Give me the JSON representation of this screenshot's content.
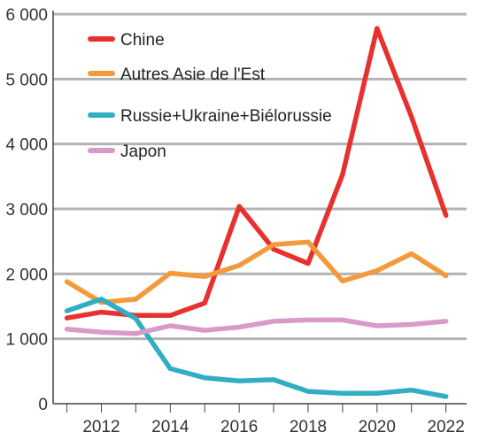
{
  "chart_data": {
    "type": "line",
    "title": "",
    "xlabel": "",
    "ylabel": "",
    "x": [
      2011,
      2012,
      2013,
      2014,
      2015,
      2016,
      2017,
      2018,
      2019,
      2020,
      2021,
      2022
    ],
    "x_tick_labels": [
      "2012",
      "2014",
      "2016",
      "2018",
      "2020",
      "2022"
    ],
    "x_tick_values": [
      2012,
      2014,
      2016,
      2018,
      2020,
      2022
    ],
    "xlim": [
      2010.6,
      2022.6
    ],
    "ylim": [
      0,
      6000
    ],
    "y_ticks": [
      0,
      1000,
      2000,
      3000,
      4000,
      5000,
      6000
    ],
    "y_tick_labels": [
      "0",
      "1 000",
      "2 000",
      "3 000",
      "4 000",
      "5 000",
      "6 000"
    ],
    "grid": "horizontal",
    "legend_position": "top-left",
    "series": [
      {
        "name": "Chine",
        "color": "#e8312f",
        "values": [
          1320,
          1410,
          1360,
          1360,
          1550,
          3040,
          2380,
          2160,
          3530,
          5780,
          4420,
          2900
        ]
      },
      {
        "name": "Autres Asie de l'Est",
        "color": "#f39a3b",
        "values": [
          1880,
          1560,
          1610,
          2010,
          1960,
          2130,
          2450,
          2490,
          1890,
          2050,
          2310,
          1970
        ]
      },
      {
        "name": "Russie+Ukraine+Biélorussie",
        "color": "#31aec4",
        "values": [
          1430,
          1610,
          1310,
          540,
          400,
          350,
          370,
          190,
          160,
          160,
          210,
          110
        ]
      },
      {
        "name": "Japon",
        "color": "#d99ac6",
        "values": [
          1150,
          1100,
          1080,
          1200,
          1130,
          1180,
          1270,
          1290,
          1290,
          1200,
          1220,
          1270
        ]
      }
    ]
  }
}
